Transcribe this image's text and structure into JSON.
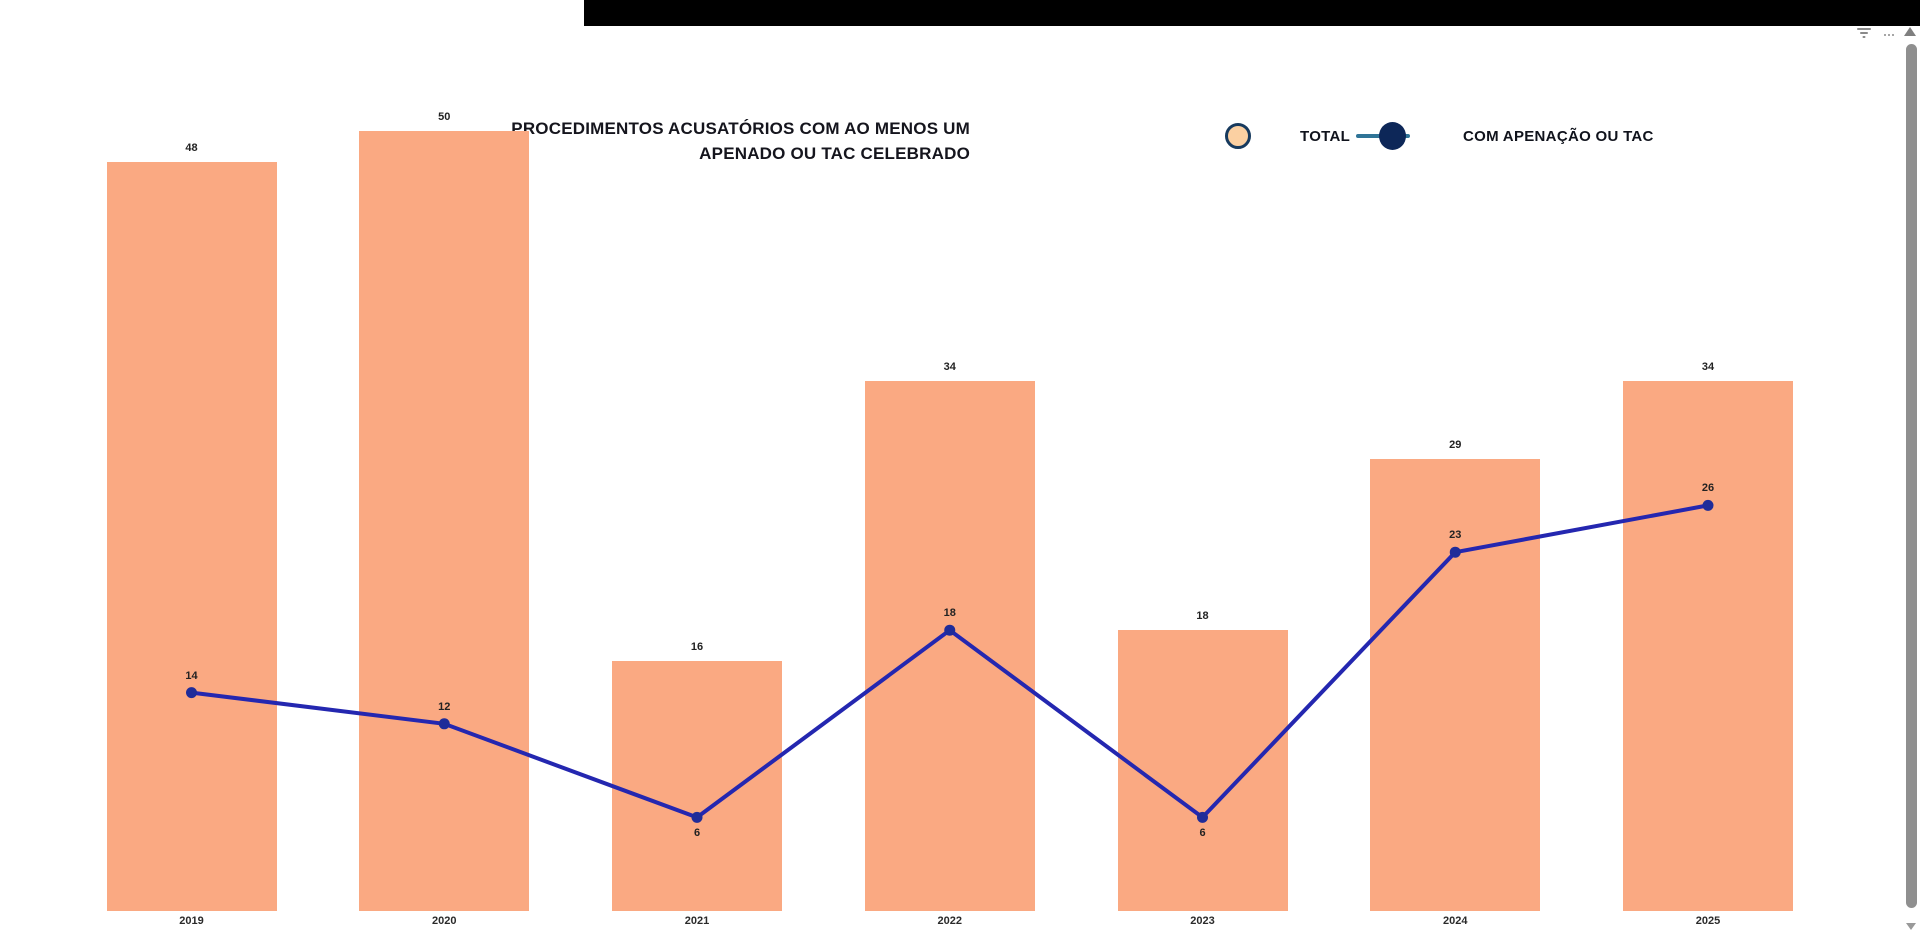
{
  "chrome": {
    "topbar_color": "#000000",
    "icons": {
      "filter": "filter-funnel-icon",
      "more_options": "more-options-icon",
      "scroll_up": "scroll-up-arrow-icon",
      "scroll_down": "scroll-down-arrow-icon"
    }
  },
  "chart_data": {
    "type": "bar",
    "subtype": "combo-bar-line",
    "title": "PROCEDIMENTOS ACUSATÓRIOS COM AO MENOS UM APENADO OU TAC CELEBRADO",
    "title_lines": [
      "PROCEDIMENTOS ACUSATÓRIOS COM AO MENOS UM",
      "APENADO OU TAC CELEBRADO"
    ],
    "categories": [
      "2019",
      "2020",
      "2021",
      "2022",
      "2023",
      "2024",
      "2025"
    ],
    "series": [
      {
        "name": "TOTAL",
        "type": "bar",
        "values": [
          48,
          50,
          16,
          34,
          18,
          29,
          34
        ],
        "color": "#FAA982"
      },
      {
        "name": "COM APENAÇÃO OU TAC",
        "type": "line",
        "values": [
          14,
          12,
          6,
          18,
          6,
          23,
          26
        ],
        "color": "#2427B0",
        "marker_color": "#1F2C99"
      }
    ],
    "line_label_placement": [
      "above",
      "above",
      "below",
      "above",
      "below",
      "above",
      "above"
    ],
    "data_labels": true,
    "grid": false,
    "y_axis_visible": false,
    "ylim": [
      0,
      50
    ],
    "legend_position": "top-right",
    "legend": {
      "items": [
        {
          "label": "TOTAL",
          "swatch_fill": "#FBD0A2",
          "swatch_border": "#173A5E"
        },
        {
          "label": "COM APENAÇÃO OU TAC",
          "swatch_fill": "#0D2758",
          "line_color": "#2F7497"
        }
      ]
    }
  }
}
